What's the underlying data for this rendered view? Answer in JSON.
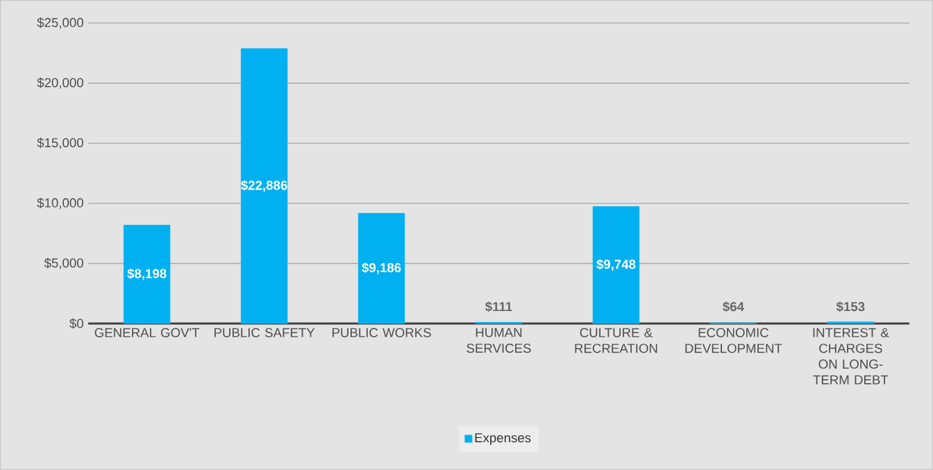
{
  "chart_data": {
    "type": "bar",
    "categories": [
      "GENERAL GOV'T",
      "PUBLIC SAFETY",
      "PUBLIC WORKS",
      "HUMAN SERVICES",
      "CULTURE & RECREATION",
      "ECONOMIC DEVELOPMENT",
      "INTEREST & CHARGES ON LONG-TERM DEBT"
    ],
    "series": [
      {
        "name": "Expenses",
        "color": "#00b0f0",
        "values": [
          8198,
          22886,
          9186,
          111,
          9748,
          64,
          153
        ],
        "value_labels": [
          "$8,198",
          "$22,886",
          "$9,186",
          "$111",
          "$9,748",
          "$64",
          "$153"
        ]
      }
    ],
    "ylim": [
      0,
      25000
    ],
    "yticks": [
      {
        "value": 0,
        "label": "$0"
      },
      {
        "value": 5000,
        "label": "$5,000"
      },
      {
        "value": 10000,
        "label": "$10,000"
      },
      {
        "value": 15000,
        "label": "$15,000"
      },
      {
        "value": 20000,
        "label": "$20,000"
      },
      {
        "value": 25000,
        "label": "$25,000"
      }
    ],
    "grid": "y",
    "legend": "bottom"
  }
}
